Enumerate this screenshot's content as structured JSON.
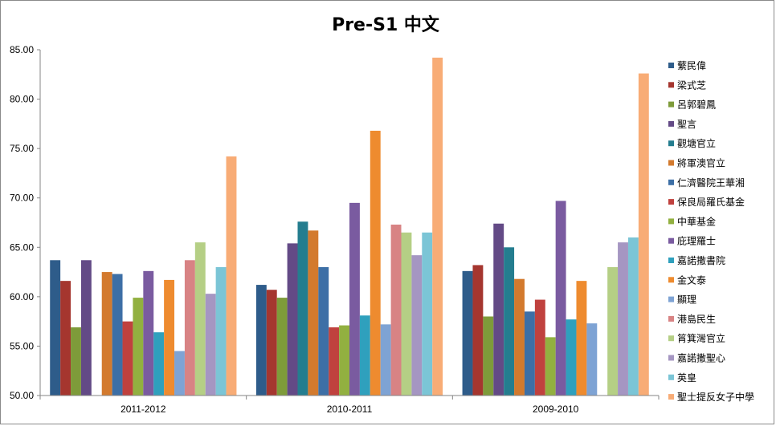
{
  "chart_data": {
    "type": "bar",
    "title": "Pre-S1 中文",
    "xlabel": "",
    "ylabel": "",
    "ylim": [
      50,
      85
    ],
    "yticks": [
      "50.00",
      "55.00",
      "60.00",
      "65.00",
      "70.00",
      "75.00",
      "80.00",
      "85.00"
    ],
    "categories": [
      "2011-2012",
      "2010-2011",
      "2009-2010"
    ],
    "grid": false,
    "legend_position": "right",
    "series": [
      {
        "name": "蘩民偉",
        "color": "#2E5C8A",
        "values": [
          63.7,
          61.2,
          62.6
        ]
      },
      {
        "name": "梁式芝",
        "color": "#A5362F",
        "values": [
          61.6,
          60.7,
          63.2
        ]
      },
      {
        "name": "呂郭碧鳳",
        "color": "#7E9B3A",
        "values": [
          56.9,
          59.9,
          58.0
        ]
      },
      {
        "name": "聖言",
        "color": "#634A86",
        "values": [
          63.7,
          65.4,
          67.4
        ]
      },
      {
        "name": "觀塘官立",
        "color": "#247D8F",
        "values": [
          null,
          67.6,
          65.0
        ]
      },
      {
        "name": "將軍澳官立",
        "color": "#D37A2E",
        "values": [
          62.5,
          66.7,
          61.8
        ]
      },
      {
        "name": "仁濟醫院王華湘",
        "color": "#3D6FA6",
        "values": [
          62.3,
          63.0,
          58.5
        ]
      },
      {
        "name": "保良局羅氏基金",
        "color": "#C0413E",
        "values": [
          57.5,
          56.9,
          59.7
        ]
      },
      {
        "name": "中華基金",
        "color": "#92B040",
        "values": [
          59.9,
          57.1,
          55.9
        ]
      },
      {
        "name": "庇理羅士",
        "color": "#7A5BA0",
        "values": [
          62.6,
          69.5,
          69.7
        ]
      },
      {
        "name": "嘉諾撒書院",
        "color": "#2FA0BD",
        "values": [
          56.4,
          58.1,
          57.7
        ]
      },
      {
        "name": "金文泰",
        "color": "#EE8B2F",
        "values": [
          61.7,
          76.8,
          61.6
        ]
      },
      {
        "name": "顯理",
        "color": "#7EA3D4",
        "values": [
          54.5,
          57.2,
          57.3
        ]
      },
      {
        "name": "港島民生",
        "color": "#D88384",
        "values": [
          63.7,
          67.3,
          null
        ]
      },
      {
        "name": "筲箕灣官立",
        "color": "#B5CF85",
        "values": [
          65.5,
          66.5,
          63.0
        ]
      },
      {
        "name": "嘉諾撒聖心",
        "color": "#A596C2",
        "values": [
          60.3,
          64.2,
          65.5
        ]
      },
      {
        "name": "英皇",
        "color": "#7BC5D6",
        "values": [
          63.0,
          66.5,
          66.0
        ]
      },
      {
        "name": "聖士提反女子中學",
        "color": "#F8AC76",
        "values": [
          74.2,
          84.2,
          82.6
        ]
      }
    ]
  }
}
